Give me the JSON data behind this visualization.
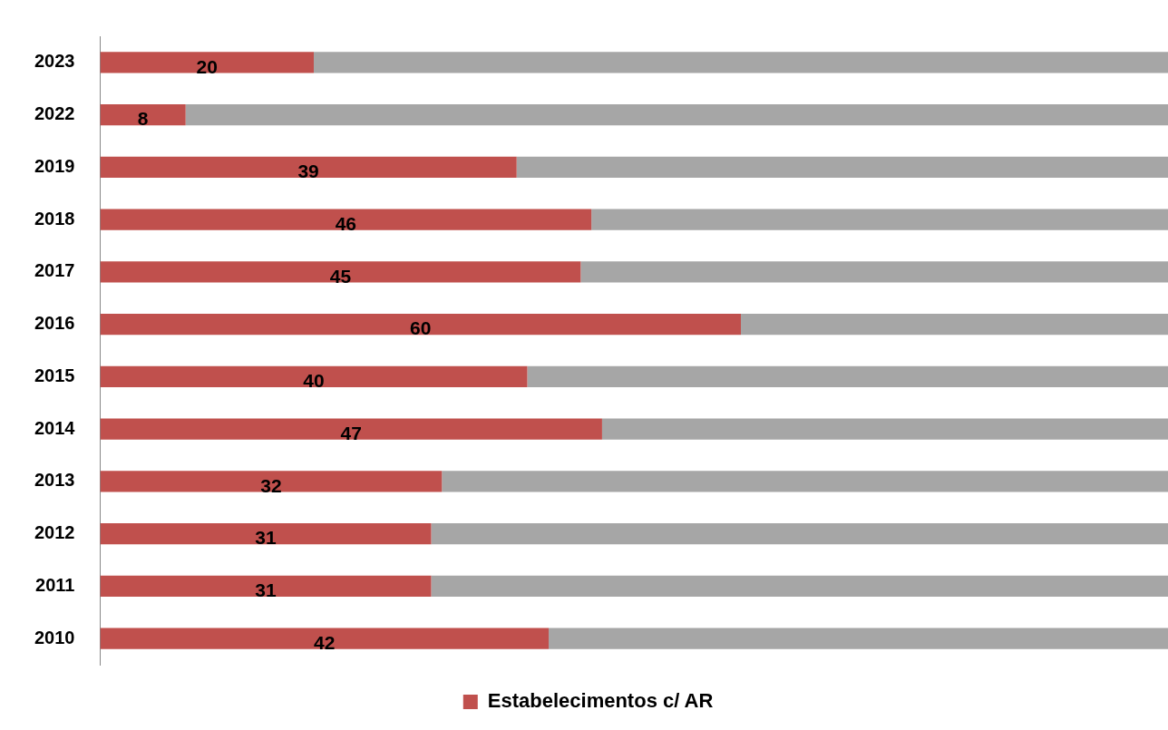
{
  "chart_data": {
    "type": "bar",
    "orientation": "horizontal",
    "stacked": true,
    "categories": [
      "2023",
      "2022",
      "2019",
      "2018",
      "2017",
      "2016",
      "2015",
      "2014",
      "2013",
      "2012",
      "2011",
      "2010"
    ],
    "series": [
      {
        "name": "Estabelecimentos c/ AR",
        "color": "#c0504d",
        "values": [
          20,
          8,
          39,
          46,
          45,
          60,
          40,
          47,
          32,
          31,
          31,
          42
        ],
        "value_labels": [
          "20",
          "8",
          "39",
          "46",
          "45",
          "60",
          "40",
          "47",
          "32",
          "31",
          "31",
          "42"
        ]
      },
      {
        "color": "#a6a6a6",
        "values": [
          80,
          92,
          61,
          54,
          55,
          40,
          60,
          53,
          68,
          69,
          69,
          58
        ]
      }
    ],
    "xlim": [
      0,
      100
    ],
    "tick_labels": "y",
    "legend": "bottom"
  }
}
